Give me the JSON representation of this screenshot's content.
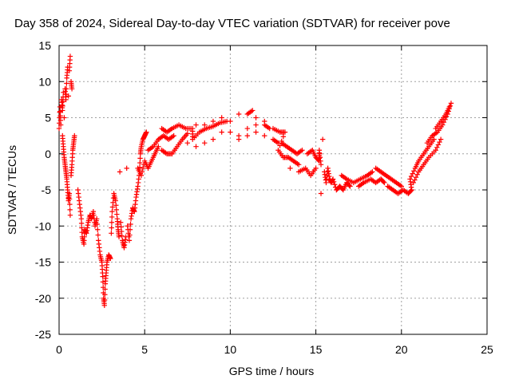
{
  "chart_data": {
    "type": "scatter",
    "title": "Day 358 of 2024, Sidereal Day-to-day VTEC variation (SDTVAR) for receiver pove",
    "xlabel": "GPS time / hours",
    "ylabel": "SDTVAR / TECUs",
    "xlim": [
      0,
      25
    ],
    "ylim": [
      -25,
      15
    ],
    "xticks": [
      0,
      5,
      10,
      15,
      20,
      25
    ],
    "yticks": [
      15,
      10,
      5,
      0,
      -5,
      -10,
      -15,
      -20,
      -25
    ],
    "xtick_labels": [
      "0",
      "5",
      "10",
      "15",
      "20",
      "25"
    ],
    "ytick_labels": [
      "15",
      "10",
      "5",
      "0",
      "-5",
      "-10",
      "-15",
      "-20",
      "-25"
    ],
    "grid": true,
    "marker": "plus",
    "color": "#ff0000",
    "series": [
      {
        "name": "SDTVAR",
        "points": [
          [
            0.0,
            3.5
          ],
          [
            0.05,
            6.5
          ],
          [
            0.1,
            4.0
          ],
          [
            0.15,
            7.5
          ],
          [
            0.2,
            6.0
          ],
          [
            0.25,
            8.5
          ],
          [
            0.3,
            5.0
          ],
          [
            0.35,
            9.0
          ],
          [
            0.4,
            7.5
          ],
          [
            0.45,
            10.5
          ],
          [
            0.5,
            12.0
          ],
          [
            0.55,
            8.0
          ],
          [
            0.6,
            11.5
          ],
          [
            0.65,
            13.5
          ],
          [
            0.7,
            10.0
          ],
          [
            0.75,
            9.0
          ],
          [
            0.2,
            2.5
          ],
          [
            0.25,
            1.0
          ],
          [
            0.3,
            -0.5
          ],
          [
            0.35,
            -1.5
          ],
          [
            0.4,
            -2.5
          ],
          [
            0.45,
            -3.5
          ],
          [
            0.5,
            -5.0
          ],
          [
            0.55,
            -6.5
          ],
          [
            0.6,
            -5.5
          ],
          [
            0.65,
            -8.5
          ],
          [
            0.7,
            -3.0
          ],
          [
            0.75,
            -1.5
          ],
          [
            0.8,
            0.5
          ],
          [
            0.85,
            1.5
          ],
          [
            0.9,
            2.5
          ],
          [
            1.1,
            -5.0
          ],
          [
            1.2,
            -7.0
          ],
          [
            1.3,
            -9.0
          ],
          [
            1.35,
            -11.5
          ],
          [
            1.45,
            -12.5
          ],
          [
            1.5,
            -10.5
          ],
          [
            1.6,
            -11.0
          ],
          [
            1.7,
            -9.5
          ],
          [
            1.8,
            -8.5
          ],
          [
            1.9,
            -9.0
          ],
          [
            2.0,
            -8.0
          ],
          [
            2.1,
            -10.0
          ],
          [
            2.2,
            -9.0
          ],
          [
            2.3,
            -12.0
          ],
          [
            2.4,
            -14.0
          ],
          [
            2.5,
            -15.0
          ],
          [
            2.55,
            -17.0
          ],
          [
            2.6,
            -20.0
          ],
          [
            2.65,
            -21.0
          ],
          [
            2.7,
            -18.0
          ],
          [
            2.75,
            -16.5
          ],
          [
            2.8,
            -15.0
          ],
          [
            2.9,
            -14.0
          ],
          [
            3.0,
            -14.5
          ],
          [
            3.05,
            -11.0
          ],
          [
            3.1,
            -8.0
          ],
          [
            3.2,
            -5.5
          ],
          [
            3.3,
            -6.5
          ],
          [
            3.4,
            -9.0
          ],
          [
            3.45,
            -10.5
          ],
          [
            3.5,
            -11.5
          ],
          [
            3.55,
            -2.5
          ],
          [
            3.6,
            -9.5
          ],
          [
            3.7,
            -12.0
          ],
          [
            3.8,
            -13.0
          ],
          [
            3.9,
            -11.5
          ],
          [
            3.95,
            -2.0
          ],
          [
            4.0,
            -10.0
          ],
          [
            4.1,
            -12.0
          ],
          [
            4.2,
            -9.0
          ],
          [
            4.3,
            -7.5
          ],
          [
            4.4,
            -8.0
          ],
          [
            4.5,
            -6.0
          ],
          [
            4.6,
            -4.5
          ],
          [
            4.7,
            -2.5
          ],
          [
            4.75,
            0.0
          ],
          [
            4.8,
            1.0
          ],
          [
            4.9,
            2.0
          ],
          [
            5.0,
            2.5
          ],
          [
            5.1,
            3.0
          ],
          [
            4.6,
            -2.0
          ],
          [
            4.8,
            -3.0
          ],
          [
            5.0,
            -1.0
          ],
          [
            5.2,
            -2.0
          ],
          [
            5.4,
            -1.0
          ],
          [
            5.6,
            0.0
          ],
          [
            5.8,
            1.0
          ],
          [
            5.2,
            0.5
          ],
          [
            5.5,
            1.0
          ],
          [
            5.8,
            2.0
          ],
          [
            6.1,
            2.5
          ],
          [
            6.4,
            2.0
          ],
          [
            6.7,
            2.5
          ],
          [
            6.0,
            0.5
          ],
          [
            6.3,
            0.0
          ],
          [
            6.6,
            0.0
          ],
          [
            6.9,
            1.0
          ],
          [
            7.2,
            2.0
          ],
          [
            7.5,
            2.8
          ],
          [
            6.0,
            3.5
          ],
          [
            6.3,
            3.0
          ],
          [
            6.6,
            3.5
          ],
          [
            7.0,
            4.0
          ],
          [
            7.4,
            3.5
          ],
          [
            7.8,
            3.5
          ],
          [
            7.8,
            2.0
          ],
          [
            8.2,
            3.0
          ],
          [
            8.6,
            3.5
          ],
          [
            9.0,
            3.8
          ],
          [
            9.4,
            4.3
          ],
          [
            9.8,
            4.5
          ],
          [
            7.5,
            1.5
          ],
          [
            8.0,
            1.0
          ],
          [
            8.5,
            1.5
          ],
          [
            9.0,
            2.0
          ],
          [
            9.5,
            3.0
          ],
          [
            10.0,
            3.0
          ],
          [
            8.0,
            4.0
          ],
          [
            8.5,
            4.0
          ],
          [
            9.0,
            4.5
          ],
          [
            9.5,
            5.0
          ],
          [
            10.0,
            4.5
          ],
          [
            10.5,
            5.5
          ],
          [
            11.0,
            5.5
          ],
          [
            11.3,
            6.0
          ],
          [
            10.5,
            2.5
          ],
          [
            11.0,
            3.5
          ],
          [
            11.5,
            4.0
          ],
          [
            12.0,
            4.0
          ],
          [
            12.3,
            3.5
          ],
          [
            10.5,
            2.0
          ],
          [
            11.0,
            2.5
          ],
          [
            11.5,
            3.0
          ],
          [
            12.0,
            2.5
          ],
          [
            12.5,
            2.0
          ],
          [
            12.8,
            1.5
          ],
          [
            11.5,
            5.0
          ],
          [
            12.0,
            4.5
          ],
          [
            12.5,
            3.5
          ],
          [
            12.9,
            3.0
          ],
          [
            13.2,
            3.0
          ],
          [
            12.8,
            0.5
          ],
          [
            13.1,
            -0.5
          ],
          [
            13.4,
            -0.5
          ],
          [
            13.7,
            -1.0
          ],
          [
            14.0,
            -1.5
          ],
          [
            13.0,
            1.5
          ],
          [
            13.3,
            1.0
          ],
          [
            13.6,
            0.5
          ],
          [
            13.9,
            0.0
          ],
          [
            14.2,
            0.5
          ],
          [
            13.5,
            -2.0
          ],
          [
            14.0,
            -2.5
          ],
          [
            14.4,
            -2.0
          ],
          [
            14.7,
            -3.0
          ],
          [
            15.0,
            -2.0
          ],
          [
            14.5,
            0.0
          ],
          [
            14.8,
            0.5
          ],
          [
            15.0,
            -0.5
          ],
          [
            15.2,
            -1.0
          ],
          [
            15.2,
            0.5
          ],
          [
            15.3,
            -1.5
          ],
          [
            15.3,
            -5.5
          ],
          [
            15.4,
            2.0
          ],
          [
            15.5,
            -2.5
          ],
          [
            15.6,
            -4.0
          ],
          [
            15.7,
            -2.0
          ],
          [
            15.8,
            -3.5
          ],
          [
            15.9,
            -4.0
          ],
          [
            16.0,
            -3.5
          ],
          [
            16.2,
            -5.0
          ],
          [
            16.4,
            -4.5
          ],
          [
            16.6,
            -5.0
          ],
          [
            16.8,
            -4.0
          ],
          [
            17.0,
            -4.5
          ],
          [
            16.5,
            -3.0
          ],
          [
            16.8,
            -3.5
          ],
          [
            17.2,
            -4.0
          ],
          [
            17.6,
            -3.5
          ],
          [
            18.0,
            -3.0
          ],
          [
            18.3,
            -2.5
          ],
          [
            17.5,
            -4.5
          ],
          [
            17.8,
            -4.0
          ],
          [
            18.2,
            -3.5
          ],
          [
            18.5,
            -4.0
          ],
          [
            18.8,
            -3.5
          ],
          [
            19.0,
            -4.0
          ],
          [
            18.5,
            -2.0
          ],
          [
            18.8,
            -2.5
          ],
          [
            19.1,
            -3.0
          ],
          [
            19.4,
            -3.5
          ],
          [
            19.7,
            -4.0
          ],
          [
            20.0,
            -4.5
          ],
          [
            19.2,
            -4.5
          ],
          [
            19.5,
            -5.0
          ],
          [
            19.8,
            -5.5
          ],
          [
            20.1,
            -5.0
          ],
          [
            20.4,
            -5.5
          ],
          [
            20.6,
            -5.0
          ],
          [
            20.5,
            -3.5
          ],
          [
            20.8,
            -2.0
          ],
          [
            21.0,
            -1.0
          ],
          [
            21.3,
            0.0
          ],
          [
            21.6,
            1.0
          ],
          [
            21.9,
            2.0
          ],
          [
            20.7,
            -4.0
          ],
          [
            21.0,
            -2.5
          ],
          [
            21.3,
            -1.5
          ],
          [
            21.6,
            -0.5
          ],
          [
            22.0,
            0.5
          ],
          [
            22.3,
            2.0
          ],
          [
            21.5,
            1.5
          ],
          [
            21.8,
            2.5
          ],
          [
            22.1,
            3.0
          ],
          [
            22.4,
            4.0
          ],
          [
            22.7,
            5.5
          ],
          [
            22.9,
            7.0
          ],
          [
            22.0,
            3.5
          ],
          [
            22.3,
            4.5
          ],
          [
            22.6,
            5.5
          ],
          [
            22.8,
            6.5
          ]
        ]
      }
    ]
  }
}
